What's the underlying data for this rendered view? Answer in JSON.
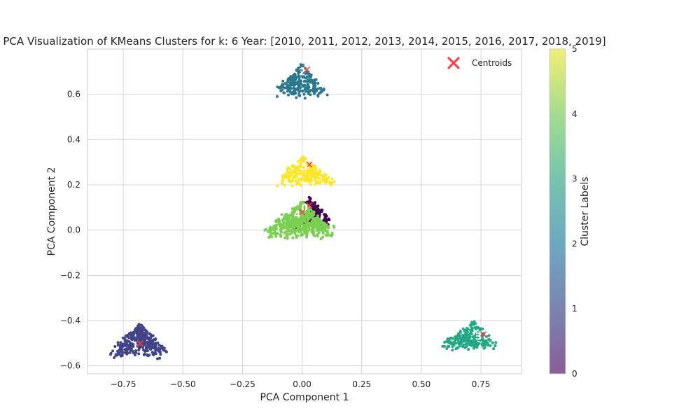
{
  "chart_data": {
    "type": "scatter",
    "title": "PCA Visualization of KMeans Clusters for k: 6 Year: [2010, 2011, 2012, 2013, 2014, 2015, 2016, 2017, 2018, 2019]",
    "xlabel": "PCA Component 1",
    "ylabel": "PCA Component 2",
    "xlim": [
      -0.9,
      0.92
    ],
    "ylim": [
      -0.635,
      0.8
    ],
    "x_ticks": [
      -0.75,
      -0.5,
      -0.25,
      0.0,
      0.25,
      0.5,
      0.75
    ],
    "x_tick_labels": [
      "−0.75",
      "−0.50",
      "−0.25",
      "0.00",
      "0.25",
      "0.50",
      "0.75"
    ],
    "y_ticks": [
      -0.6,
      -0.4,
      -0.2,
      0.0,
      0.2,
      0.4,
      0.6
    ],
    "y_tick_labels": [
      "−0.6",
      "−0.4",
      "−0.2",
      "0.0",
      "0.2",
      "0.4",
      "0.6"
    ],
    "grid": true,
    "legend": {
      "placement": "top-right",
      "entries": [
        "Centroids"
      ]
    },
    "colorbar": {
      "label": "Cluster Labels",
      "range": [
        0,
        5
      ],
      "ticks": [
        0,
        1,
        2,
        3,
        4,
        5
      ],
      "tick_labels": [
        "0",
        "1",
        "2",
        "3",
        "4",
        "5"
      ]
    },
    "colors": {
      "cluster_0": "#440154",
      "cluster_1": "#414487",
      "cluster_2": "#2a788e",
      "cluster_3": "#22a884",
      "cluster_4": "#7ad151",
      "cluster_5": "#fde725",
      "centroid": "#ff3b3b",
      "grid": "#d4d4d4",
      "axes_edge": "#cccccc"
    },
    "clusters": [
      {
        "label": 0,
        "cx": 0.03,
        "apex_y": 0.15,
        "base_y": 0.0,
        "left_x": -0.06,
        "right_x": 0.14,
        "count": 260
      },
      {
        "label": 1,
        "cx": -0.68,
        "apex_y": -0.41,
        "base_y": -0.57,
        "left_x": -0.82,
        "right_x": -0.55,
        "count": 340
      },
      {
        "label": 2,
        "cx": 0.0,
        "apex_y": 0.74,
        "base_y": 0.58,
        "left_x": -0.13,
        "right_x": 0.11,
        "count": 240
      },
      {
        "label": 3,
        "cx": 0.72,
        "apex_y": -0.4,
        "base_y": -0.535,
        "left_x": 0.56,
        "right_x": 0.83,
        "count": 230
      },
      {
        "label": 4,
        "cx": 0.0,
        "apex_y": 0.13,
        "base_y": -0.04,
        "left_x": -0.18,
        "right_x": 0.15,
        "count": 520
      },
      {
        "label": 5,
        "cx": 0.0,
        "apex_y": 0.33,
        "base_y": 0.19,
        "left_x": -0.12,
        "right_x": 0.15,
        "count": 210
      }
    ],
    "centroids": [
      {
        "label": "0",
        "x": 0.01,
        "y": 0.1
      },
      {
        "label": "1",
        "x": -0.7,
        "y": -0.51
      },
      {
        "label": "2",
        "x": 0.0,
        "y": 0.7
      },
      {
        "label": "3",
        "x": 0.74,
        "y": -0.47
      },
      {
        "label": "4",
        "x": -0.02,
        "y": 0.07
      },
      {
        "label": "5",
        "x": 0.01,
        "y": 0.28
      }
    ]
  }
}
